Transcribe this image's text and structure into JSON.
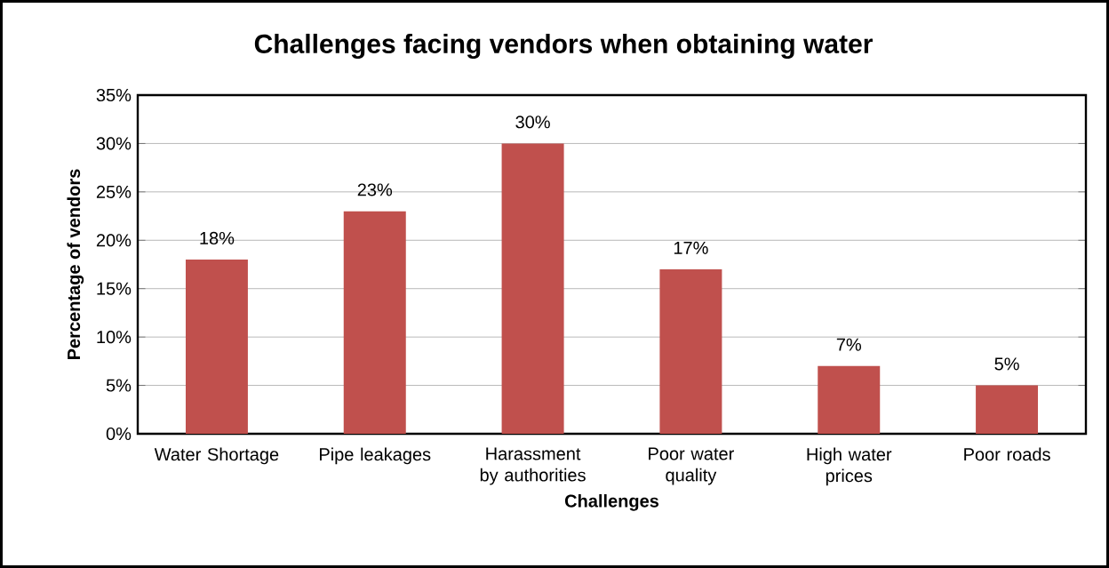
{
  "chart_data": {
    "type": "bar",
    "title": "Challenges facing vendors when obtaining water",
    "xlabel": "Challenges",
    "ylabel": "Percentage of vendors",
    "categories": [
      "Water Shortage",
      "Pipe leakages",
      "Harassment by authorities",
      "Poor water quality",
      "High water prices",
      "Poor roads"
    ],
    "values": [
      18,
      23,
      30,
      17,
      7,
      5
    ],
    "value_labels": [
      "18%",
      "23%",
      "30%",
      "17%",
      "7%",
      "5%"
    ],
    "color": "#c0504d",
    "ylim": [
      0,
      35
    ],
    "yticks": [
      {
        "value": 0,
        "label": "0%"
      },
      {
        "value": 5,
        "label": "5%"
      },
      {
        "value": 10,
        "label": "10%"
      },
      {
        "value": 15,
        "label": "15%"
      },
      {
        "value": 20,
        "label": "20%"
      },
      {
        "value": 25,
        "label": "25%"
      },
      {
        "value": 30,
        "label": "30%"
      },
      {
        "value": 35,
        "label": "35%"
      }
    ],
    "grid": "y"
  }
}
